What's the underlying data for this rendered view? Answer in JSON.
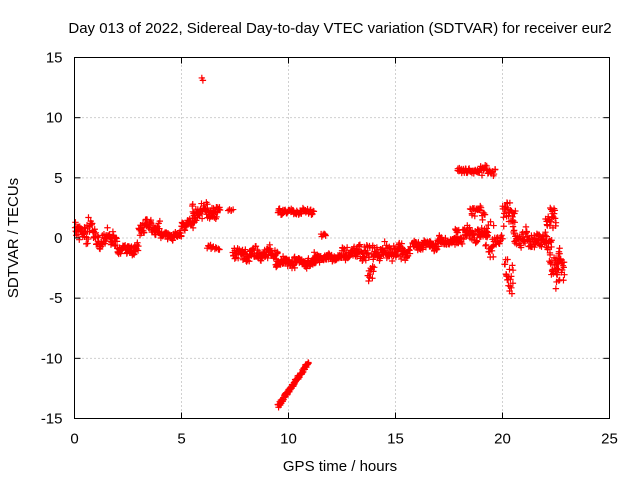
{
  "chart_data": {
    "type": "scatter",
    "title": "Day 013 of 2022, Sidereal Day-to-day VTEC variation (SDTVAR) for receiver eur2",
    "xlabel": "GPS time / hours",
    "ylabel": "SDTVAR / TECUs",
    "xlim": [
      0,
      25
    ],
    "ylim": [
      -15,
      15
    ],
    "xticks": [
      0,
      5,
      10,
      15,
      20,
      25
    ],
    "xtick_labels": [
      "0",
      "5",
      "10",
      "15",
      "20",
      "25"
    ],
    "yticks": [
      -15,
      -10,
      -5,
      0,
      5,
      10,
      15
    ],
    "ytick_labels": [
      "-15",
      "-10",
      "-5",
      "0",
      "5",
      "10",
      "15"
    ],
    "grid": true,
    "marker": "+",
    "series_color": "#ff0000",
    "segments": [
      {
        "t0": 0.0,
        "t1": 1.0,
        "dt": 0.02,
        "center": 0.6,
        "spread": 1.3
      },
      {
        "t0": 1.0,
        "t1": 2.0,
        "dt": 0.02,
        "center": -0.1,
        "spread": 0.9
      },
      {
        "t0": 2.0,
        "t1": 3.0,
        "dt": 0.02,
        "center": -0.9,
        "spread": 0.8
      },
      {
        "t0": 3.0,
        "t1": 4.0,
        "dt": 0.02,
        "center": 0.9,
        "spread": 0.8
      },
      {
        "t0": 4.0,
        "t1": 5.0,
        "dt": 0.02,
        "center": 0.2,
        "spread": 0.5
      },
      {
        "t0": 5.0,
        "t1": 5.6,
        "dt": 0.02,
        "center": 1.2,
        "spread": 0.6
      },
      {
        "t0": 5.5,
        "t1": 6.8,
        "dt": 0.02,
        "center": 2.2,
        "spread": 1.0
      },
      {
        "t0": 6.2,
        "t1": 6.8,
        "dt": 0.05,
        "center": -0.8,
        "spread": 0.3
      },
      {
        "t0": 7.2,
        "t1": 7.4,
        "dt": 0.05,
        "center": 2.3,
        "spread": 0.1
      },
      {
        "t0": 7.4,
        "t1": 9.5,
        "dt": 0.02,
        "center": -1.3,
        "spread": 0.8
      },
      {
        "t0": 9.4,
        "t1": 11.3,
        "dt": 0.02,
        "center": -2.0,
        "spread": 0.6
      },
      {
        "t0": 9.5,
        "t1": 11.2,
        "dt": 0.03,
        "center": 2.2,
        "spread": 0.4
      },
      {
        "t0": 11.2,
        "t1": 12.5,
        "dt": 0.02,
        "center": -1.6,
        "spread": 0.5
      },
      {
        "t0": 11.5,
        "t1": 11.8,
        "dt": 0.05,
        "center": 0.2,
        "spread": 0.3
      },
      {
        "t0": 12.5,
        "t1": 13.8,
        "dt": 0.02,
        "center": -1.2,
        "spread": 0.8
      },
      {
        "t0": 13.7,
        "t1": 14.0,
        "dt": 0.03,
        "center": -3.0,
        "spread": 1.0
      },
      {
        "t0": 13.9,
        "t1": 15.7,
        "dt": 0.02,
        "center": -1.2,
        "spread": 0.9
      },
      {
        "t0": 15.8,
        "t1": 17.0,
        "dt": 0.02,
        "center": -0.6,
        "spread": 0.6
      },
      {
        "t0": 17.0,
        "t1": 17.9,
        "dt": 0.02,
        "center": -0.3,
        "spread": 0.5
      },
      {
        "t0": 17.9,
        "t1": 19.7,
        "dt": 0.03,
        "center": 5.6,
        "spread": 0.5
      },
      {
        "t0": 17.8,
        "t1": 19.3,
        "dt": 0.02,
        "center": 0.3,
        "spread": 0.9
      },
      {
        "t0": 18.5,
        "t1": 19.2,
        "dt": 0.03,
        "center": 2.3,
        "spread": 0.8
      },
      {
        "t0": 19.2,
        "t1": 19.6,
        "dt": 0.02,
        "center": 0.0,
        "spread": 2.2
      },
      {
        "t0": 19.6,
        "t1": 20.0,
        "dt": 0.03,
        "center": -0.3,
        "spread": 0.6
      },
      {
        "t0": 20.0,
        "t1": 20.6,
        "dt": 0.02,
        "center": 2.0,
        "spread": 1.8
      },
      {
        "t0": 20.1,
        "t1": 20.5,
        "dt": 0.02,
        "center": -2.8,
        "spread": 2.2
      },
      {
        "t0": 20.5,
        "t1": 21.5,
        "dt": 0.02,
        "center": 0.0,
        "spread": 1.0
      },
      {
        "t0": 21.5,
        "t1": 22.3,
        "dt": 0.02,
        "center": -0.3,
        "spread": 1.0
      },
      {
        "t0": 22.0,
        "t1": 22.5,
        "dt": 0.02,
        "center": 1.5,
        "spread": 1.8
      },
      {
        "t0": 22.2,
        "t1": 22.7,
        "dt": 0.02,
        "center": -2.0,
        "spread": 1.7
      },
      {
        "t0": 22.5,
        "t1": 22.9,
        "dt": 0.02,
        "center": -3.0,
        "spread": 2.1
      }
    ],
    "lines": [
      {
        "x0": 9.5,
        "x1": 10.95,
        "y0": -14.0,
        "y1": -10.3,
        "dt": 0.018
      }
    ],
    "points": [
      {
        "x": 5.95,
        "y": 13.3
      },
      {
        "x": 6.0,
        "y": 13.1
      }
    ]
  }
}
